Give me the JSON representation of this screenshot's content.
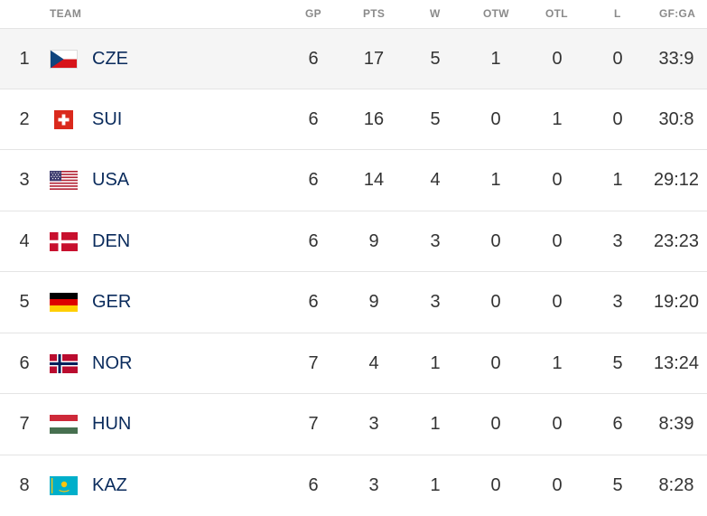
{
  "header": {
    "team": "TEAM",
    "gp": "GP",
    "pts": "PTS",
    "w": "W",
    "otw": "OTW",
    "otl": "OTL",
    "l": "L",
    "gfga": "GF:GA"
  },
  "rows": [
    {
      "rank": "1",
      "code": "CZE",
      "flag": "czech-flag-icon",
      "gp": "6",
      "pts": "17",
      "w": "5",
      "otw": "1",
      "otl": "0",
      "l": "0",
      "gfga": "33:9"
    },
    {
      "rank": "2",
      "code": "SUI",
      "flag": "swiss-flag-icon",
      "gp": "6",
      "pts": "16",
      "w": "5",
      "otw": "0",
      "otl": "1",
      "l": "0",
      "gfga": "30:8"
    },
    {
      "rank": "3",
      "code": "USA",
      "flag": "usa-flag-icon",
      "gp": "6",
      "pts": "14",
      "w": "4",
      "otw": "1",
      "otl": "0",
      "l": "1",
      "gfga": "29:12"
    },
    {
      "rank": "4",
      "code": "DEN",
      "flag": "denmark-flag-icon",
      "gp": "6",
      "pts": "9",
      "w": "3",
      "otw": "0",
      "otl": "0",
      "l": "3",
      "gfga": "23:23"
    },
    {
      "rank": "5",
      "code": "GER",
      "flag": "germany-flag-icon",
      "gp": "6",
      "pts": "9",
      "w": "3",
      "otw": "0",
      "otl": "0",
      "l": "3",
      "gfga": "19:20"
    },
    {
      "rank": "6",
      "code": "NOR",
      "flag": "norway-flag-icon",
      "gp": "7",
      "pts": "4",
      "w": "1",
      "otw": "0",
      "otl": "1",
      "l": "5",
      "gfga": "13:24"
    },
    {
      "rank": "7",
      "code": "HUN",
      "flag": "hungary-flag-icon",
      "gp": "7",
      "pts": "3",
      "w": "1",
      "otw": "0",
      "otl": "0",
      "l": "6",
      "gfga": "8:39"
    },
    {
      "rank": "8",
      "code": "KAZ",
      "flag": "kazakhstan-flag-icon",
      "gp": "6",
      "pts": "3",
      "w": "1",
      "otw": "0",
      "otl": "0",
      "l": "5",
      "gfga": "8:28"
    }
  ],
  "colors": {
    "header_text": "#8a8a8a",
    "team_code_text": "#0a2b5c",
    "highlight_row": "#f5f5f5",
    "divider": "#e4e4e4"
  }
}
